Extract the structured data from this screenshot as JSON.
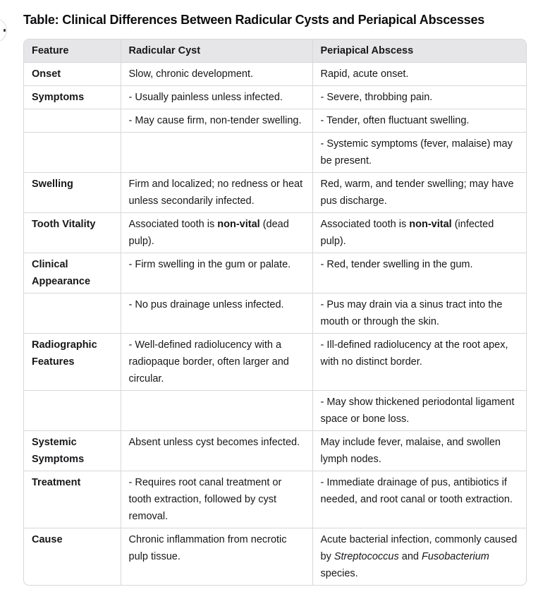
{
  "page": {
    "title": "Table: Clinical Differences Between Radicular Cysts and Periapical Abscesses"
  },
  "colors": {
    "header_bg": "#e6e6e8",
    "border": "#d8d8dc",
    "text": "#17171a",
    "page_bg": "#ffffff",
    "avatar_border": "#dcdcdc"
  },
  "table": {
    "headers": [
      "Feature",
      "Radicular Cyst",
      "Periapical Abscess"
    ],
    "rows": [
      {
        "feature": "Onset",
        "cyst": "Slow, chronic development.",
        "abscess": "Rapid, acute onset."
      },
      {
        "feature": "Symptoms",
        "cyst": "- Usually painless unless infected.",
        "abscess": "- Severe, throbbing pain."
      },
      {
        "feature": "",
        "cyst": "- May cause firm, non-tender swelling.",
        "abscess": "- Tender, often fluctuant swelling."
      },
      {
        "feature": "",
        "cyst": "",
        "abscess": "- Systemic symptoms (fever, malaise) may be present."
      },
      {
        "feature": "Swelling",
        "cyst": "Firm and localized; no redness or heat unless secondarily infected.",
        "abscess": "Red, warm, and tender swelling; may have pus discharge."
      },
      {
        "feature": "Tooth Vitality",
        "cyst": [
          {
            "t": "Associated tooth is "
          },
          {
            "t": "non-vital",
            "b": true
          },
          {
            "t": " (dead pulp)."
          }
        ],
        "abscess": [
          {
            "t": "Associated tooth is "
          },
          {
            "t": "non-vital",
            "b": true
          },
          {
            "t": " (infected pulp)."
          }
        ]
      },
      {
        "feature": "Clinical Appearance",
        "cyst": "- Firm swelling in the gum or palate.",
        "abscess": "- Red, tender swelling in the gum."
      },
      {
        "feature": "",
        "cyst": "- No pus drainage unless infected.",
        "abscess": "- Pus may drain via a sinus tract into the mouth or through the skin."
      },
      {
        "feature": "Radiographic Features",
        "cyst": "- Well-defined radiolucency with a radiopaque border, often larger and circular.",
        "abscess": "- Ill-defined radiolucency at the root apex, with no distinct border."
      },
      {
        "feature": "",
        "cyst": "",
        "abscess": "- May show thickened periodontal ligament space or bone loss."
      },
      {
        "feature": "Systemic Symptoms",
        "cyst": "Absent unless cyst becomes infected.",
        "abscess": "May include fever, malaise, and swollen lymph nodes."
      },
      {
        "feature": "Treatment",
        "cyst": "- Requires root canal treatment or tooth extraction, followed by cyst removal.",
        "abscess": "- Immediate drainage of pus, antibiotics if needed, and root canal or tooth extraction."
      },
      {
        "feature": "Cause",
        "cyst": "Chronic inflammation from necrotic pulp tissue.",
        "abscess": [
          {
            "t": "Acute bacterial infection, commonly caused by "
          },
          {
            "t": "Streptococcus",
            "i": true
          },
          {
            "t": " and "
          },
          {
            "t": "Fusobacterium",
            "i": true
          },
          {
            "t": " species."
          }
        ]
      }
    ]
  }
}
